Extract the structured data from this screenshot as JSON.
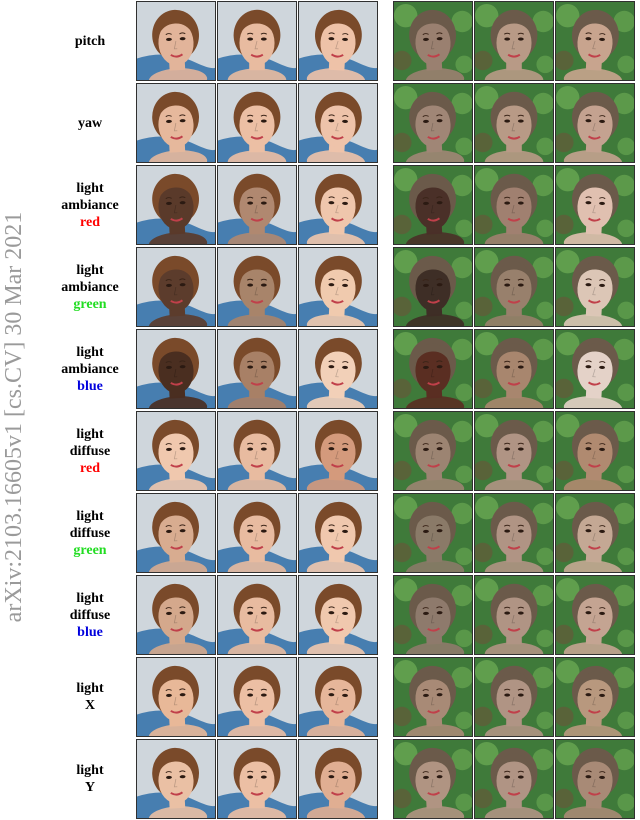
{
  "margin_stamp": "arXiv:2103.16605v1  [cs.CV]  30 Mar 2021",
  "colors": {
    "red": "#ff0000",
    "green": "#22dd22",
    "blue": "#0000dd",
    "black": "#000000"
  },
  "rows": [
    {
      "lines": [
        {
          "text": "pitch",
          "color": "#000000"
        }
      ]
    },
    {
      "lines": [
        {
          "text": "yaw",
          "color": "#000000"
        }
      ]
    },
    {
      "lines": [
        {
          "text": "light",
          "color": "#000000"
        },
        {
          "text": "ambiance",
          "color": "#000000"
        },
        {
          "text": "red",
          "color": "#ff0000"
        }
      ]
    },
    {
      "lines": [
        {
          "text": "light",
          "color": "#000000"
        },
        {
          "text": "ambiance",
          "color": "#000000"
        },
        {
          "text": "green",
          "color": "#22dd22"
        }
      ]
    },
    {
      "lines": [
        {
          "text": "light",
          "color": "#000000"
        },
        {
          "text": "ambiance",
          "color": "#000000"
        },
        {
          "text": "blue",
          "color": "#0000dd"
        }
      ]
    },
    {
      "lines": [
        {
          "text": "light",
          "color": "#000000"
        },
        {
          "text": "diffuse",
          "color": "#000000"
        },
        {
          "text": "red",
          "color": "#ff0000"
        }
      ]
    },
    {
      "lines": [
        {
          "text": "light",
          "color": "#000000"
        },
        {
          "text": "diffuse",
          "color": "#000000"
        },
        {
          "text": "green",
          "color": "#22dd22"
        }
      ]
    },
    {
      "lines": [
        {
          "text": "light",
          "color": "#000000"
        },
        {
          "text": "diffuse",
          "color": "#000000"
        },
        {
          "text": "blue",
          "color": "#0000dd"
        }
      ]
    },
    {
      "lines": [
        {
          "text": "light",
          "color": "#000000"
        },
        {
          "text": "X",
          "color": "#000000"
        }
      ]
    },
    {
      "lines": [
        {
          "text": "light",
          "color": "#000000"
        },
        {
          "text": "Y",
          "color": "#000000"
        }
      ]
    }
  ],
  "palettes": {
    "left_background": "#cfd6dc",
    "left_background_accent": "#2f6fa8",
    "right_background": "#3f7a3a",
    "right_background_accent": "#6fae55",
    "hair_left": "#7a4a2a",
    "hair_right": "#6b5a4a",
    "lips": "#c0404a"
  },
  "skin_tones": {
    "left": [
      [
        "#e2b49a",
        "#e8bba0",
        "#eec2a8"
      ],
      [
        "#e6b89c",
        "#ecbfa4",
        "#eec3aa"
      ],
      [
        "#5a3a2a",
        "#b08870",
        "#efc6ac"
      ],
      [
        "#5c3c2c",
        "#a8846a",
        "#f0caae"
      ],
      [
        "#4a2e20",
        "#a88066",
        "#f2d0b8"
      ],
      [
        "#f0c8ae",
        "#e8bba0",
        "#d49a7c"
      ],
      [
        "#d8ac90",
        "#e8bba0",
        "#f0c8ae"
      ],
      [
        "#d4a88c",
        "#e8bba0",
        "#f0c8ae"
      ],
      [
        "#e8b898",
        "#ecbfa4",
        "#e6b69a"
      ],
      [
        "#eac0a4",
        "#ecbfa4",
        "#e0ae92"
      ]
    ],
    "right": [
      [
        "#9a8070",
        "#b89a86",
        "#c8a48e"
      ],
      [
        "#a08676",
        "#b89a86",
        "#c4a290"
      ],
      [
        "#4a3028",
        "#a08070",
        "#e0c0b0"
      ],
      [
        "#3e2e26",
        "#98806c",
        "#dcc6b6"
      ],
      [
        "#5a2e22",
        "#a8866e",
        "#e4d2c8"
      ],
      [
        "#9c8472",
        "#b09484",
        "#b08a70"
      ],
      [
        "#8a7a68",
        "#b09484",
        "#c4a894"
      ],
      [
        "#8e7a6c",
        "#b09484",
        "#c4a492"
      ],
      [
        "#a88a76",
        "#b09484",
        "#b8987e"
      ],
      [
        "#b09482",
        "#b09484",
        "#a88a76"
      ]
    ]
  }
}
